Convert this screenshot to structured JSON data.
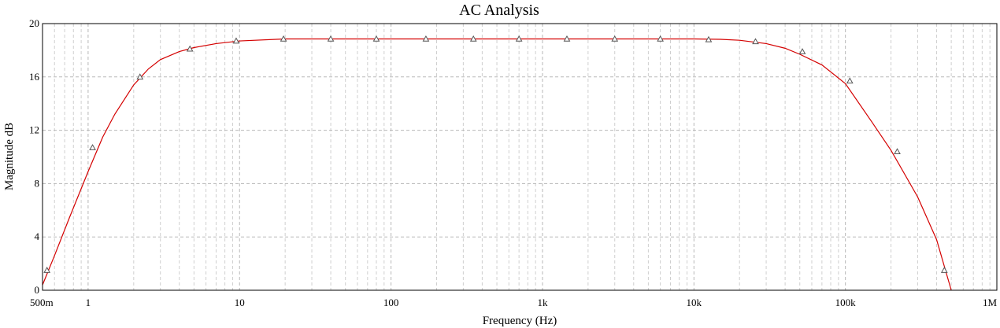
{
  "chart_data": {
    "type": "line",
    "title": "AC Analysis",
    "xlabel": "Frequency (Hz)",
    "ylabel": "Magnitude dB",
    "xscale": "log",
    "xlim": [
      0.5,
      1000000
    ],
    "ylim": [
      0,
      20
    ],
    "grid": true,
    "x_ticks": [
      {
        "value": 0.5,
        "label": "500m"
      },
      {
        "value": 1,
        "label": "1"
      },
      {
        "value": 10,
        "label": "10"
      },
      {
        "value": 100,
        "label": "100"
      },
      {
        "value": 1000,
        "label": "1k"
      },
      {
        "value": 10000,
        "label": "10k"
      },
      {
        "value": 100000,
        "label": "100k"
      },
      {
        "value": 1000000,
        "label": "1M"
      }
    ],
    "y_ticks": [
      {
        "value": 0,
        "label": "0"
      },
      {
        "value": 4,
        "label": "4"
      },
      {
        "value": 8,
        "label": "8"
      },
      {
        "value": 12,
        "label": "12"
      },
      {
        "value": 16,
        "label": "16"
      },
      {
        "value": 20,
        "label": "20"
      }
    ],
    "series": [
      {
        "color": "#d40000",
        "marker": "triangle",
        "x": [
          0.5,
          0.6,
          0.75,
          1,
          1.25,
          1.5,
          2,
          2.5,
          3,
          4,
          5,
          7,
          10,
          20,
          50,
          100,
          1000,
          10000,
          15000,
          20000,
          30000,
          40000,
          50000,
          70000,
          100000,
          150000,
          200000,
          300000,
          400000,
          500000
        ],
        "values": [
          0.4,
          2.6,
          5.4,
          8.9,
          11.5,
          13.2,
          15.4,
          16.6,
          17.3,
          17.9,
          18.2,
          18.5,
          18.7,
          18.85,
          18.85,
          18.85,
          18.85,
          18.85,
          18.82,
          18.75,
          18.5,
          18.15,
          17.7,
          16.9,
          15.5,
          12.6,
          10.5,
          7.0,
          3.8,
          0.0
        ]
      }
    ],
    "markers": {
      "x": [
        0.535,
        1.07,
        2.2,
        4.7,
        9.5,
        19.5,
        40,
        80,
        170,
        350,
        700,
        1450,
        3000,
        6000,
        12500,
        25500,
        52000,
        107000,
        220000,
        450000
      ],
      "values": [
        1.5,
        10.7,
        16.0,
        18.1,
        18.7,
        18.85,
        18.85,
        18.85,
        18.85,
        18.85,
        18.85,
        18.85,
        18.85,
        18.85,
        18.8,
        18.65,
        17.9,
        15.7,
        10.4,
        1.5
      ]
    }
  }
}
